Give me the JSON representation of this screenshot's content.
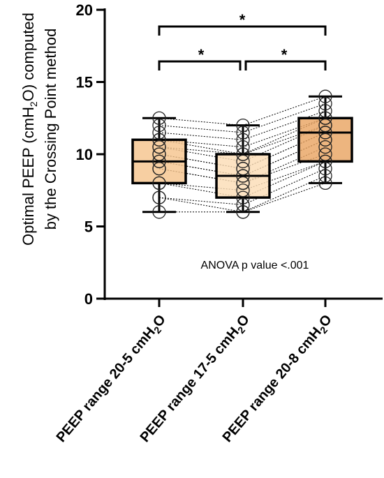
{
  "chart_data": {
    "type": "box",
    "ylabel_line1_parts": [
      "Optimal PEEP (cmH",
      "2",
      "O) computed"
    ],
    "ylabel_line2": "by the Crossing Point method",
    "ylim": [
      0,
      20
    ],
    "yticks": [
      0,
      5,
      10,
      15,
      20
    ],
    "ytick_labels": [
      "0",
      "5",
      "10",
      "15",
      "20"
    ],
    "categories": [
      {
        "parts": [
          "PEEP range 20-5 cmH",
          "2",
          "O"
        ]
      },
      {
        "parts": [
          "PEEP range 17-5 cmH",
          "2",
          "O"
        ]
      },
      {
        "parts": [
          "PEEP range 20-8 cmH",
          "2",
          "O"
        ]
      }
    ],
    "boxes": [
      {
        "min": 6,
        "q1": 8,
        "median": 9.5,
        "q3": 11,
        "max": 12.5,
        "color": "#F5C48E"
      },
      {
        "min": 6,
        "q1": 7,
        "median": 8.5,
        "q3": 10,
        "max": 12,
        "color": "#FBDDB6"
      },
      {
        "min": 8,
        "q1": 9.5,
        "median": 11.5,
        "q3": 12.5,
        "max": 14,
        "color": "#E9A563"
      }
    ],
    "paired_points": [
      [
        12.5,
        12.0,
        14.0
      ],
      [
        12.0,
        11.5,
        13.5
      ],
      [
        11.5,
        11.0,
        13.0
      ],
      [
        11.0,
        10.5,
        12.5
      ],
      [
        11.0,
        10.0,
        12.5
      ],
      [
        10.5,
        10.0,
        12.0
      ],
      [
        10.5,
        9.5,
        12.0
      ],
      [
        10.0,
        9.0,
        11.5
      ],
      [
        10.0,
        9.0,
        11.5
      ],
      [
        9.5,
        8.5,
        11.0
      ],
      [
        9.5,
        8.5,
        11.0
      ],
      [
        9.0,
        8.0,
        10.5
      ],
      [
        9.0,
        8.0,
        10.0
      ],
      [
        8.0,
        7.5,
        9.5
      ],
      [
        8.0,
        7.0,
        9.5
      ],
      [
        7.0,
        6.5,
        9.0
      ],
      [
        7.0,
        6.0,
        8.5
      ],
      [
        6.0,
        6.0,
        8.0
      ]
    ],
    "significance": [
      {
        "from": 0,
        "to": 2,
        "label": "*"
      },
      {
        "from": 0,
        "to": 1,
        "label": "*"
      },
      {
        "from": 1,
        "to": 2,
        "label": "*"
      }
    ],
    "annotation": "ANOVA p value <.001"
  }
}
